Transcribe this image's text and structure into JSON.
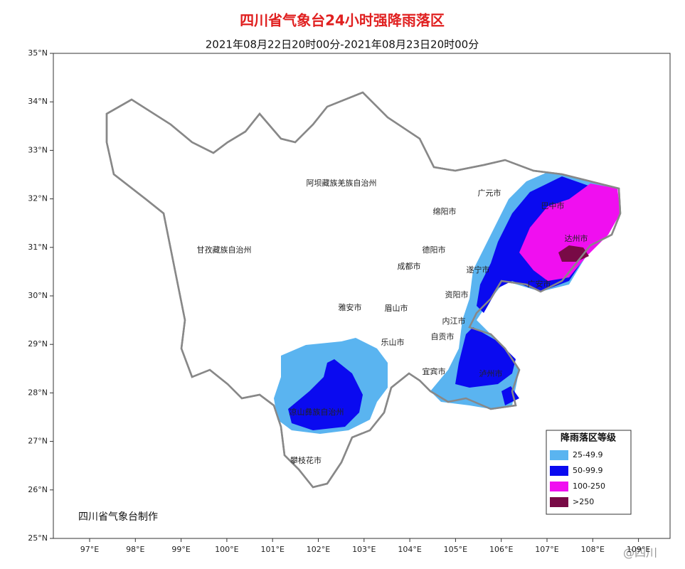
{
  "header": {
    "title": "四川省气象台24小时强降雨落区",
    "subtitle": "2021年08月22日20时00分-2021年08月23日20时00分"
  },
  "lat_ticks": [
    {
      "value": 25,
      "label": "25°N"
    },
    {
      "value": 26,
      "label": "26°N"
    },
    {
      "value": 27,
      "label": "27°N"
    },
    {
      "value": 28,
      "label": "28°N"
    },
    {
      "value": 29,
      "label": "29°N"
    },
    {
      "value": 30,
      "label": "30°N"
    },
    {
      "value": 31,
      "label": "31°N"
    },
    {
      "value": 32,
      "label": "32°N"
    },
    {
      "value": 33,
      "label": "33°N"
    },
    {
      "value": 34,
      "label": "34°N"
    },
    {
      "value": 35,
      "label": "35°N"
    }
  ],
  "lon_ticks": [
    {
      "value": 97,
      "label": "97°E"
    },
    {
      "value": 98,
      "label": "98°E"
    },
    {
      "value": 99,
      "label": "99°E"
    },
    {
      "value": 100,
      "label": "100°E"
    },
    {
      "value": 101,
      "label": "101°E"
    },
    {
      "value": 102,
      "label": "102°E"
    },
    {
      "value": 103,
      "label": "103°E"
    },
    {
      "value": 104,
      "label": "104°E"
    },
    {
      "value": 105,
      "label": "105°E"
    },
    {
      "value": 106,
      "label": "106°E"
    },
    {
      "value": 107,
      "label": "107°E"
    },
    {
      "value": 108,
      "label": "108°E"
    },
    {
      "value": 109,
      "label": "109°E"
    }
  ],
  "places": [
    "阿坝藏族羌族自治州",
    "甘孜藏族自治州",
    "广元市",
    "绵阳市",
    "巴中市",
    "德阳市",
    "达州市",
    "成都市",
    "遂宁市",
    "广安市",
    "资阳市",
    "雅安市",
    "眉山市",
    "内江市",
    "乐山市",
    "自贡市",
    "宜宾市",
    "泸州市",
    "凉山彝族自治州",
    "攀枝花市"
  ],
  "legend": {
    "title": "降雨落区等级",
    "items": [
      {
        "label": "25-49.9",
        "color": "#5ab4f0"
      },
      {
        "label": "50-99.9",
        "color": "#0a0af0"
      },
      {
        "label": "100-250",
        "color": "#f00ff0"
      },
      {
        "label": ">250",
        "color": "#780a46"
      }
    ]
  },
  "credit": "四川省气象台制作",
  "watermark": "@四川"
}
